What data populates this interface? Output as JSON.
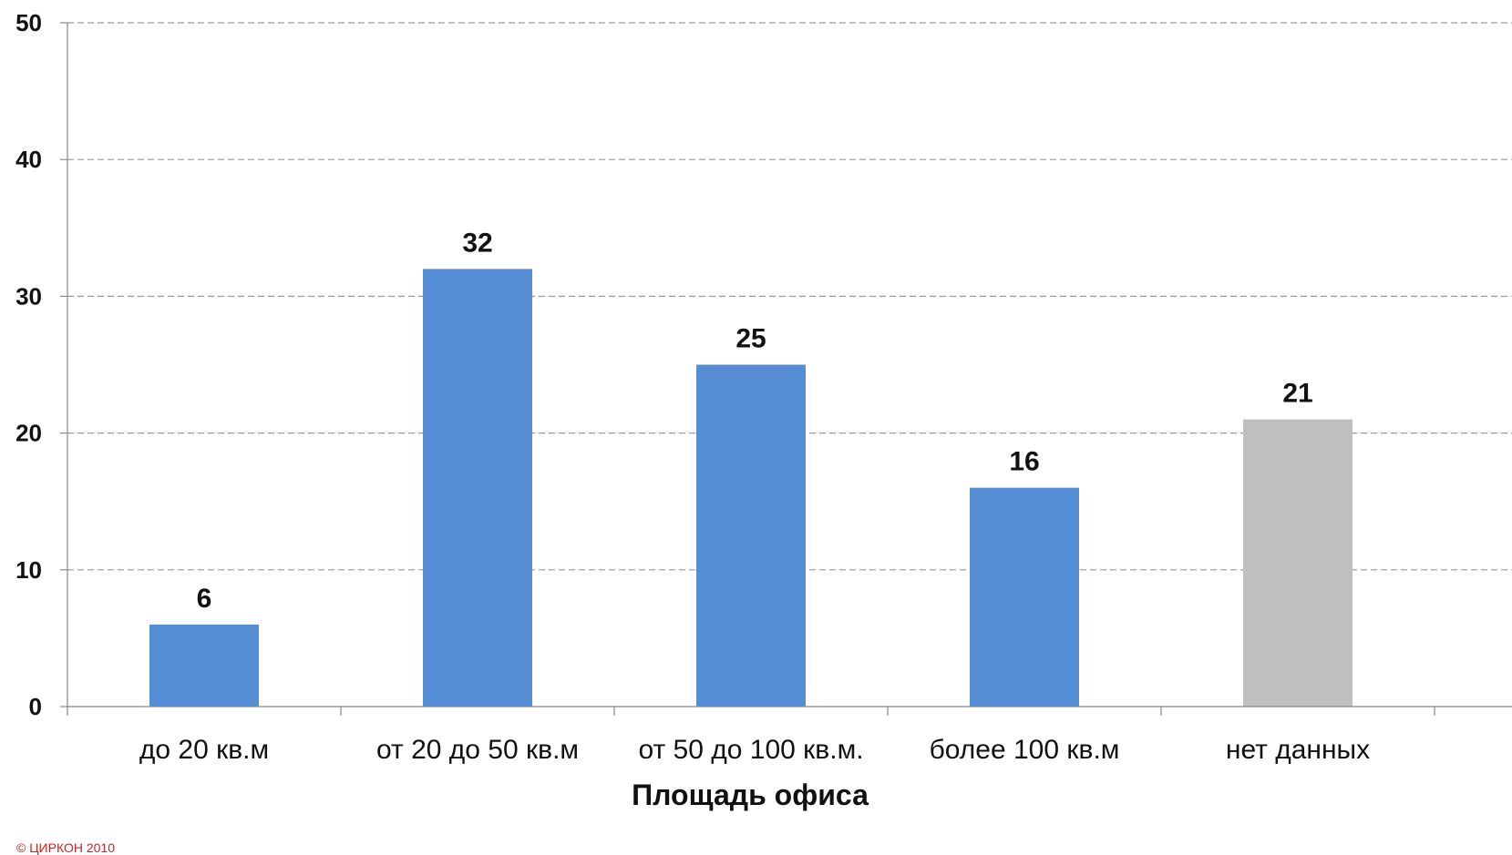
{
  "chart_data": {
    "type": "bar",
    "categories": [
      "до 20 кв.м",
      "от 20 до 50 кв.м",
      "от 50 до 100 кв.м.",
      "более 100 кв.м",
      "нет данных"
    ],
    "values": [
      6,
      32,
      25,
      16,
      21
    ],
    "data_labels": [
      "6",
      "32",
      "25",
      "16",
      "21"
    ],
    "bar_colors": [
      "#558ED5",
      "#558ED5",
      "#558ED5",
      "#558ED5",
      "#BFBFBF"
    ],
    "xlabel": "Площадь офиса",
    "ylabel": "",
    "ylim": [
      0,
      50
    ],
    "yticks": [
      0,
      10,
      20,
      30,
      40,
      50
    ],
    "grid": true,
    "gridline_style": "dashed"
  },
  "copyright": "© ЦИРКОН 2010"
}
